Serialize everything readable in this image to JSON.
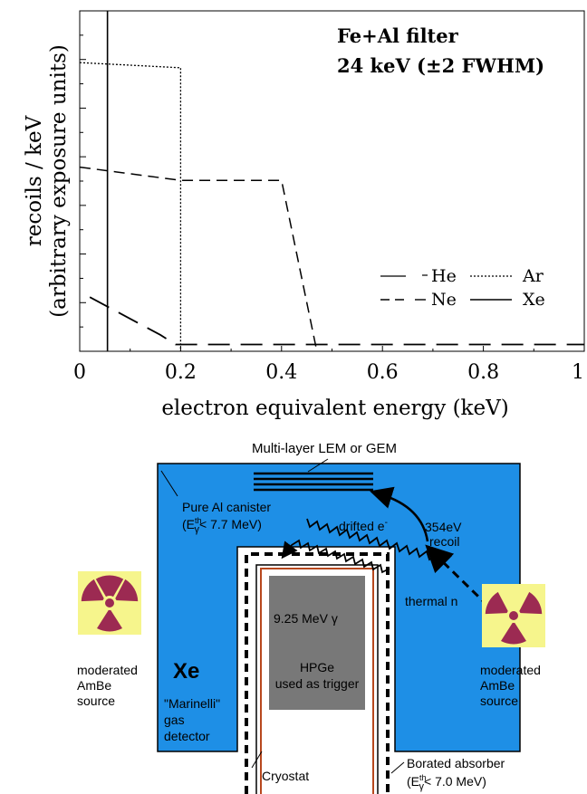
{
  "chart_data": {
    "type": "line",
    "title": "Fe+Al filter",
    "subtitle": "24 keV (±2 FWHM)",
    "xlabel": "electron equivalent energy (keV)",
    "ylabel_line1": "recoils / keV",
    "ylabel_line2": "(arbitrary exposure units)",
    "xlim": [
      0,
      1
    ],
    "ylim": [
      0,
      1
    ],
    "x_ticks": [
      "0",
      "0.2",
      "0.4",
      "0.6",
      "0.8",
      "1"
    ],
    "x_tick_values": [
      0,
      0.2,
      0.4,
      0.6,
      0.8,
      1
    ],
    "legend_position": "bottom-right",
    "series": [
      {
        "name": "He",
        "style": "dash-dot",
        "x": [],
        "y": []
      },
      {
        "name": "Ar",
        "style": "dotted",
        "x": [
          0,
          0.198,
          0.2,
          0.2
        ],
        "y": [
          0.848,
          0.833,
          0.833,
          0
        ]
      },
      {
        "name": "Ne",
        "style": "dashed",
        "x": [
          0,
          0.2,
          0.4,
          0.47
        ],
        "y": [
          0.541,
          0.502,
          0.502,
          0
        ]
      },
      {
        "name": "Xe",
        "style": "solid",
        "x": [
          0.055,
          0.055
        ],
        "y": [
          1,
          0
        ]
      },
      {
        "name": "",
        "style": "long-dash",
        "x": [
          0.02,
          0.16,
          0.19,
          1.0
        ],
        "y": [
          0.159,
          0.048,
          0.02,
          0.02
        ]
      }
    ]
  },
  "diagram": {
    "top_label": "Multi-layer LEM or GEM",
    "canister_label_line1": "Pure Al canister",
    "canister_label_line2": "(E",
    "canister_label_sup": "th",
    "canister_label_sub": "γ",
    "canister_label_tail": "< 7.7 MeV)",
    "drifted_label": "drifted e",
    "drifted_sup": "-",
    "recoil_label_line1": "354eV",
    "recoil_label_line2": "recoil",
    "gamma_label": "9.25 MeV γ",
    "thermal_label": "thermal n",
    "xe_label": "Xe",
    "marinelli_line1": "\"Marinelli\"",
    "marinelli_line2": "gas",
    "marinelli_line3": "detector",
    "hpge_line1": "HPGe",
    "hpge_line2": "used as trigger",
    "left_source_line1": "moderated",
    "left_source_line2": "AmBe",
    "left_source_line3": "source",
    "right_source_line1": "moderated",
    "right_source_line2": "AmBe",
    "right_source_line3": "source",
    "cryostat_label": "Cryostat",
    "borated_line1": "Borated absorber",
    "borated_line2a": "(E",
    "borated_sup": "th",
    "borated_sub": "γ",
    "borated_line2b": "< 7.0 MeV)",
    "colors": {
      "canister_blue": "#1e8fe6",
      "hpge_gray": "#787878",
      "cryostat_line": "#b8481e",
      "source_yellow": "#f6f58c",
      "trefoil": "#9c2a52"
    }
  }
}
